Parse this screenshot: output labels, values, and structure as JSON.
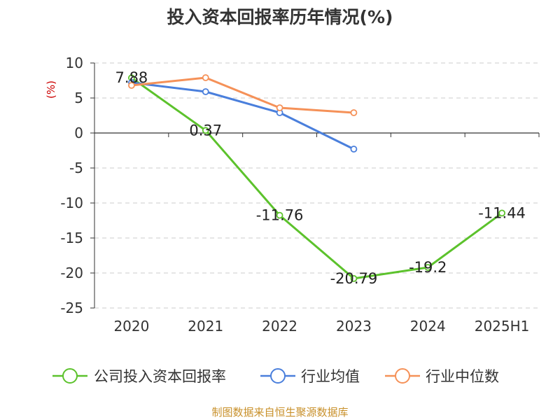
{
  "chart_data": {
    "type": "line",
    "title": "投入资本回报率历年情况(%)",
    "ylabel": "(%)",
    "xlabel": "",
    "categories": [
      "2020",
      "2021",
      "2022",
      "2023",
      "2024",
      "2025H1"
    ],
    "ylim": [
      -25,
      10
    ],
    "yticks": [
      10,
      5,
      0,
      -5,
      -10,
      -15,
      -20,
      -25
    ],
    "grid": true,
    "legend_position": "bottom",
    "series": [
      {
        "name": "公司投入资本回报率",
        "color": "#5cc22c",
        "values": [
          7.88,
          0.37,
          -11.76,
          -20.79,
          -19.2,
          -11.44
        ],
        "labels": [
          "7.88",
          "0.37",
          "-11.76",
          "-20.79",
          "-19.2",
          "-11.44"
        ]
      },
      {
        "name": "行业均值",
        "color": "#4a7fdc",
        "values": [
          7.2,
          5.9,
          2.9,
          -2.3,
          null,
          null
        ]
      },
      {
        "name": "行业中位数",
        "color": "#f59158",
        "values": [
          6.8,
          7.9,
          3.6,
          2.9,
          null,
          null
        ]
      }
    ],
    "source": "制图数据来自恒生聚源数据库"
  }
}
